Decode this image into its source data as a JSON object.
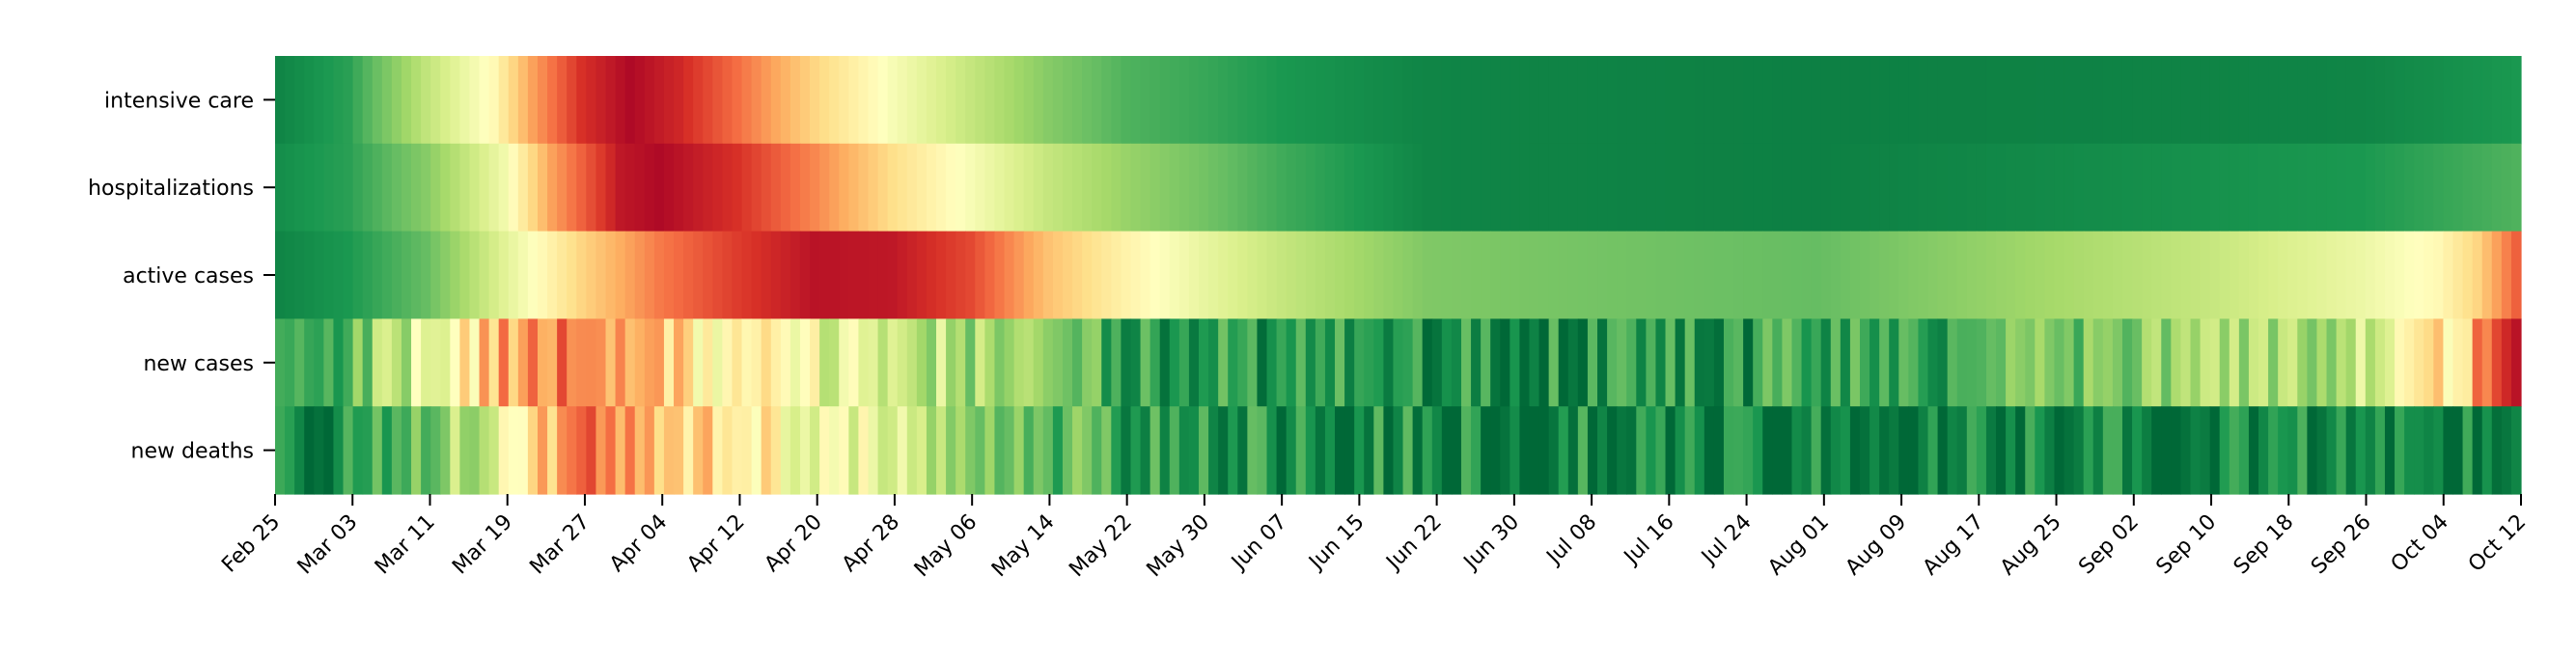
{
  "chart_data": {
    "type": "heatmap",
    "title": "",
    "xlabel": "",
    "ylabel": "",
    "rows": [
      "intensive care",
      "hospitalizations",
      "active cases",
      "new cases",
      "new deaths"
    ],
    "x_start": "Feb 25",
    "x_end": "Oct 12",
    "num_days": 231,
    "xtick_labels": [
      "Feb 25",
      "Mar 03",
      "Mar 11",
      "Mar 19",
      "Mar 27",
      "Apr 04",
      "Apr 12",
      "Apr 20",
      "Apr 28",
      "May 06",
      "May 14",
      "May 22",
      "May 30",
      "Jun 07",
      "Jun 15",
      "Jun 22",
      "Jun 30",
      "Jul 08",
      "Jul 16",
      "Jul 24",
      "Aug 01",
      "Aug 09",
      "Aug 17",
      "Aug 25",
      "Sep 02",
      "Sep 10",
      "Sep 18",
      "Sep 26",
      "Oct 04",
      "Oct 12"
    ],
    "colormap": "RdYlGn_r",
    "value_range": [
      0,
      1
    ],
    "colors": {
      "low": "#006837",
      "mid": "#ffffbf",
      "high": "#a50026"
    },
    "approx_profiles_by_date": {
      "intensive care": [
        [
          "Feb 25",
          0.06
        ],
        [
          "Mar 03",
          0.12
        ],
        [
          "Mar 11",
          0.35
        ],
        [
          "Mar 18",
          0.52
        ],
        [
          "Mar 22",
          0.72
        ],
        [
          "Mar 27",
          0.9
        ],
        [
          "Apr 01",
          0.98
        ],
        [
          "Apr 06",
          0.92
        ],
        [
          "Apr 12",
          0.8
        ],
        [
          "Apr 20",
          0.62
        ],
        [
          "Apr 28",
          0.48
        ],
        [
          "May 06",
          0.36
        ],
        [
          "May 14",
          0.25
        ],
        [
          "May 22",
          0.17
        ],
        [
          "May 30",
          0.14
        ],
        [
          "Jun 07",
          0.1
        ],
        [
          "Jun 22",
          0.06
        ],
        [
          "Aug 01",
          0.05
        ],
        [
          "Sep 26",
          0.06
        ],
        [
          "Oct 12",
          0.1
        ]
      ],
      "hospitalizations": [
        [
          "Feb 25",
          0.08
        ],
        [
          "Mar 03",
          0.12
        ],
        [
          "Mar 11",
          0.25
        ],
        [
          "Mar 19",
          0.46
        ],
        [
          "Mar 24",
          0.72
        ],
        [
          "Mar 31",
          0.95
        ],
        [
          "Apr 04",
          0.98
        ],
        [
          "Apr 12",
          0.9
        ],
        [
          "Apr 20",
          0.76
        ],
        [
          "Apr 28",
          0.6
        ],
        [
          "May 06",
          0.48
        ],
        [
          "May 14",
          0.36
        ],
        [
          "May 22",
          0.28
        ],
        [
          "May 30",
          0.22
        ],
        [
          "Jun 07",
          0.15
        ],
        [
          "Jun 15",
          0.1
        ],
        [
          "Jun 22",
          0.06
        ],
        [
          "Aug 01",
          0.05
        ],
        [
          "Sep 26",
          0.1
        ],
        [
          "Oct 12",
          0.17
        ]
      ],
      "active cases": [
        [
          "Feb 25",
          0.06
        ],
        [
          "Mar 03",
          0.1
        ],
        [
          "Mar 11",
          0.2
        ],
        [
          "Mar 19",
          0.42
        ],
        [
          "Mar 27",
          0.62
        ],
        [
          "Apr 04",
          0.78
        ],
        [
          "Apr 12",
          0.88
        ],
        [
          "Apr 20",
          0.96
        ],
        [
          "Apr 28",
          0.95
        ],
        [
          "May 06",
          0.86
        ],
        [
          "May 14",
          0.66
        ],
        [
          "May 22",
          0.54
        ],
        [
          "May 30",
          0.44
        ],
        [
          "Jun 07",
          0.36
        ],
        [
          "Jun 22",
          0.24
        ],
        [
          "Aug 01",
          0.2
        ],
        [
          "Aug 25",
          0.3
        ],
        [
          "Sep 10",
          0.36
        ],
        [
          "Sep 26",
          0.45
        ],
        [
          "Oct 04",
          0.52
        ],
        [
          "Oct 08",
          0.62
        ],
        [
          "Oct 12",
          0.82
        ]
      ],
      "new cases": [
        [
          "Feb 25",
          0.1
        ],
        [
          "Mar 03",
          0.18
        ],
        [
          "Mar 11",
          0.42
        ],
        [
          "Mar 19",
          0.7
        ],
        [
          "Mar 27",
          0.8
        ],
        [
          "Apr 04",
          0.62
        ],
        [
          "Apr 12",
          0.52
        ],
        [
          "Apr 20",
          0.45
        ],
        [
          "Apr 28",
          0.38
        ],
        [
          "May 06",
          0.3
        ],
        [
          "May 14",
          0.22
        ],
        [
          "May 22",
          0.16
        ],
        [
          "May 30",
          0.12
        ],
        [
          "Jun 22",
          0.1
        ],
        [
          "Aug 01",
          0.12
        ],
        [
          "Aug 17",
          0.16
        ],
        [
          "Sep 02",
          0.26
        ],
        [
          "Sep 18",
          0.3
        ],
        [
          "Sep 26",
          0.36
        ],
        [
          "Oct 04",
          0.55
        ],
        [
          "Oct 12",
          0.85
        ]
      ],
      "new deaths": [
        [
          "Feb 25",
          0.05
        ],
        [
          "Mar 03",
          0.06
        ],
        [
          "Mar 11",
          0.22
        ],
        [
          "Mar 19",
          0.45
        ],
        [
          "Mar 27",
          0.82
        ],
        [
          "Apr 04",
          0.7
        ],
        [
          "Apr 12",
          0.56
        ],
        [
          "Apr 20",
          0.48
        ],
        [
          "Apr 28",
          0.4
        ],
        [
          "May 06",
          0.32
        ],
        [
          "May 14",
          0.22
        ],
        [
          "May 22",
          0.15
        ],
        [
          "May 30",
          0.1
        ],
        [
          "Jun 22",
          0.07
        ],
        [
          "Aug 01",
          0.05
        ],
        [
          "Oct 12",
          0.05
        ]
      ]
    }
  }
}
